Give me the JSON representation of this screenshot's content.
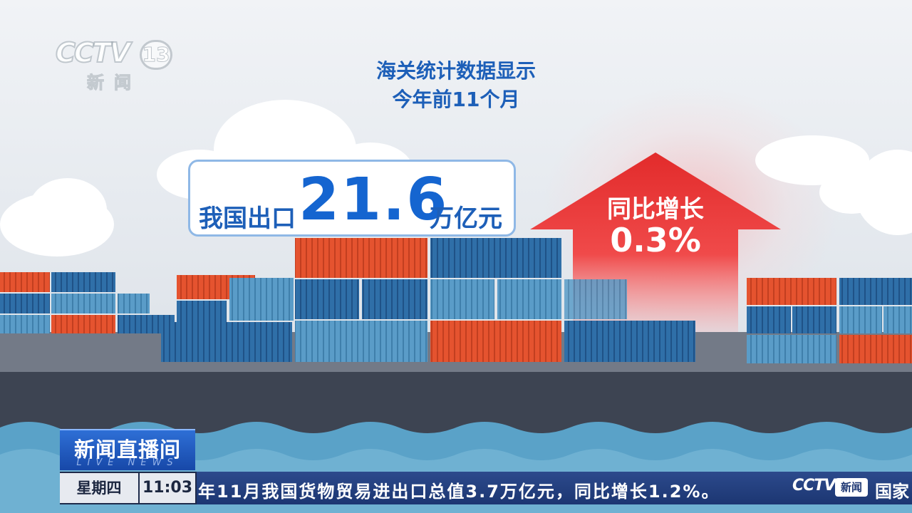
{
  "channel_logo": {
    "brand": "CCTV",
    "channel_number": "13",
    "subtitle": "新闻"
  },
  "headline": {
    "line1": "海关统计数据显示",
    "line2": "今年前11个月"
  },
  "export_stat": {
    "prefix": "我国出口",
    "value": "21.6",
    "unit": "万亿元"
  },
  "growth_stat": {
    "label": "同比增长",
    "value": "0.3%"
  },
  "program_bug": {
    "title": "新闻直播间",
    "subtitle": "LIVE NEWS"
  },
  "ticker": {
    "day": "星期四",
    "time": "11:03",
    "text": "年11月我国货物贸易进出口总值3.7万亿元，同比增长1.2%。",
    "logo_brand": "CCTV",
    "logo_sub": "新闻",
    "tail_text": "国家"
  },
  "colors": {
    "headline_blue": "#1d5fb8",
    "arrow_red": "#e8302f",
    "container_orange": "#e5532f",
    "container_blue": "#2f6fa8",
    "container_light_blue": "#5a9cc8",
    "ticker_navy": "#1c3672"
  }
}
